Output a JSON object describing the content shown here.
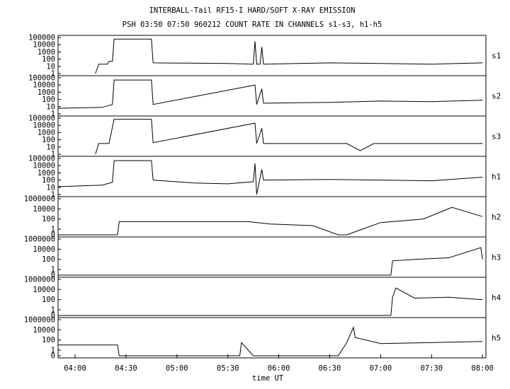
{
  "chart_data": {
    "type": "line",
    "title": "INTERBALL-Tail RF15-I HARD/SOFT X-RAY EMISSION",
    "subtitle": "PSH 03:50 07:50 960212  COUNT RATE IN CHANNELS s1-s3, h1-h5",
    "xlabel": "time UT",
    "x_ticks": [
      "04:00",
      "04:30",
      "05:00",
      "05:30",
      "06:00",
      "06:30",
      "07:00",
      "07:30",
      "08:00"
    ],
    "y_scale": "log",
    "grid": false,
    "panels": [
      {
        "name": "s1",
        "y_ticks": [
          "100000",
          "10000",
          "1000",
          "100",
          "10",
          "1"
        ],
        "series": [
          {
            "t": "04:12",
            "v": 1
          },
          {
            "t": "04:14",
            "v": 20
          },
          {
            "t": "04:19",
            "v": 20
          },
          {
            "t": "04:20",
            "v": 50
          },
          {
            "t": "04:22",
            "v": 50
          },
          {
            "t": "04:23",
            "v": 60000
          },
          {
            "t": "04:45",
            "v": 60000
          },
          {
            "t": "04:46",
            "v": 30
          },
          {
            "t": "05:30",
            "v": 25
          },
          {
            "t": "05:45",
            "v": 20
          },
          {
            "t": "05:46",
            "v": 30000
          },
          {
            "t": "05:47",
            "v": 20
          },
          {
            "t": "05:49",
            "v": 20
          },
          {
            "t": "05:50",
            "v": 5000
          },
          {
            "t": "05:51",
            "v": 20
          },
          {
            "t": "06:30",
            "v": 30
          },
          {
            "t": "07:00",
            "v": 25
          },
          {
            "t": "07:30",
            "v": 20
          },
          {
            "t": "08:00",
            "v": 30
          }
        ]
      },
      {
        "name": "s2",
        "y_ticks": [
          "100000",
          "10000",
          "1000",
          "100",
          "10",
          "1"
        ],
        "series": [
          {
            "t": "03:50",
            "v": 6
          },
          {
            "t": "04:16",
            "v": 8
          },
          {
            "t": "04:22",
            "v": 20
          },
          {
            "t": "04:23",
            "v": 50000
          },
          {
            "t": "04:45",
            "v": 50000
          },
          {
            "t": "04:46",
            "v": 20
          },
          {
            "t": "05:46",
            "v": 10000
          },
          {
            "t": "05:47",
            "v": 20
          },
          {
            "t": "05:50",
            "v": 3000
          },
          {
            "t": "05:51",
            "v": 30
          },
          {
            "t": "06:30",
            "v": 40
          },
          {
            "t": "07:00",
            "v": 60
          },
          {
            "t": "07:30",
            "v": 50
          },
          {
            "t": "08:00",
            "v": 80
          }
        ]
      },
      {
        "name": "s3",
        "y_ticks": [
          "100000",
          "10000",
          "1000",
          "100",
          "10",
          "1"
        ],
        "series": [
          {
            "t": "04:12",
            "v": 1
          },
          {
            "t": "04:14",
            "v": 30
          },
          {
            "t": "04:20",
            "v": 30
          },
          {
            "t": "04:23",
            "v": 70000
          },
          {
            "t": "04:45",
            "v": 70000
          },
          {
            "t": "04:46",
            "v": 40
          },
          {
            "t": "05:46",
            "v": 20000
          },
          {
            "t": "05:47",
            "v": 30
          },
          {
            "t": "05:50",
            "v": 4000
          },
          {
            "t": "05:51",
            "v": 30
          },
          {
            "t": "06:40",
            "v": 30
          },
          {
            "t": "06:48",
            "v": 3
          },
          {
            "t": "06:56",
            "v": 30
          },
          {
            "t": "07:30",
            "v": 30
          },
          {
            "t": "08:00",
            "v": 30
          }
        ]
      },
      {
        "name": "h1",
        "y_ticks": [
          "100000",
          "10000",
          "1000",
          "100",
          "10",
          "1"
        ],
        "series": [
          {
            "t": "03:50",
            "v": 12
          },
          {
            "t": "04:16",
            "v": 20
          },
          {
            "t": "04:22",
            "v": 50
          },
          {
            "t": "04:23",
            "v": 50000
          },
          {
            "t": "04:45",
            "v": 50000
          },
          {
            "t": "04:46",
            "v": 100
          },
          {
            "t": "05:10",
            "v": 40
          },
          {
            "t": "05:30",
            "v": 30
          },
          {
            "t": "05:45",
            "v": 60
          },
          {
            "t": "05:46",
            "v": 20000
          },
          {
            "t": "05:47",
            "v": 1
          },
          {
            "t": "05:50",
            "v": 3000
          },
          {
            "t": "05:51",
            "v": 100
          },
          {
            "t": "06:30",
            "v": 120
          },
          {
            "t": "07:00",
            "v": 100
          },
          {
            "t": "07:30",
            "v": 80
          },
          {
            "t": "08:00",
            "v": 250
          }
        ]
      },
      {
        "name": "h2",
        "y_ticks": [
          "1000000",
          "10000",
          "100",
          "1",
          "0"
        ],
        "series": [
          {
            "t": "03:50",
            "v": 0
          },
          {
            "t": "04:25",
            "v": 0
          },
          {
            "t": "04:26",
            "v": 30
          },
          {
            "t": "05:42",
            "v": 30
          },
          {
            "t": "05:55",
            "v": 10
          },
          {
            "t": "06:20",
            "v": 5
          },
          {
            "t": "06:35",
            "v": 0
          },
          {
            "t": "06:40",
            "v": 0
          },
          {
            "t": "07:00",
            "v": 20
          },
          {
            "t": "07:25",
            "v": 100
          },
          {
            "t": "07:42",
            "v": 20000
          },
          {
            "t": "08:00",
            "v": 300
          }
        ]
      },
      {
        "name": "h3",
        "y_ticks": [
          "1000000",
          "10000",
          "100",
          "1",
          "0"
        ],
        "series": [
          {
            "t": "03:50",
            "v": 0
          },
          {
            "t": "07:06",
            "v": 0
          },
          {
            "t": "07:07",
            "v": 50
          },
          {
            "t": "07:20",
            "v": 100
          },
          {
            "t": "07:40",
            "v": 200
          },
          {
            "t": "07:59",
            "v": 20000
          },
          {
            "t": "08:00",
            "v": 100
          }
        ]
      },
      {
        "name": "h4",
        "y_ticks": [
          "1000000",
          "10000",
          "100",
          "1",
          "0"
        ],
        "series": [
          {
            "t": "03:50",
            "v": 0
          },
          {
            "t": "07:06",
            "v": 0
          },
          {
            "t": "07:07",
            "v": 300
          },
          {
            "t": "07:09",
            "v": 20000
          },
          {
            "t": "07:20",
            "v": 200
          },
          {
            "t": "07:40",
            "v": 300
          },
          {
            "t": "08:00",
            "v": 100
          }
        ]
      },
      {
        "name": "h5",
        "y_ticks": [
          "1000000",
          "10000",
          "100",
          "1",
          "0"
        ],
        "series": [
          {
            "t": "03:50",
            "v": 10
          },
          {
            "t": "04:25",
            "v": 10
          },
          {
            "t": "04:26",
            "v": 0
          },
          {
            "t": "05:37",
            "v": 0
          },
          {
            "t": "05:38",
            "v": 30
          },
          {
            "t": "05:45",
            "v": 0
          },
          {
            "t": "06:35",
            "v": 0
          },
          {
            "t": "06:40",
            "v": 30
          },
          {
            "t": "06:44",
            "v": 30000
          },
          {
            "t": "06:45",
            "v": 300
          },
          {
            "t": "07:00",
            "v": 20
          },
          {
            "t": "07:30",
            "v": 30
          },
          {
            "t": "08:00",
            "v": 50
          }
        ]
      }
    ]
  }
}
